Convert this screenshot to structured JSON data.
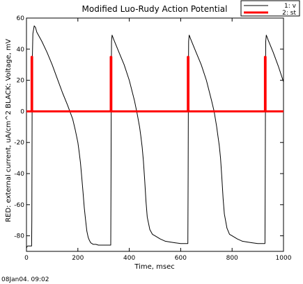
{
  "chart_data": {
    "type": "line",
    "title": "Modified Luo-Rudy Action Potential",
    "xlabel": "Time, msec",
    "ylabel": "RED: external current, uA/cm^2  BLACK: Voltage, mV",
    "xlim": [
      0,
      1000
    ],
    "ylim": [
      -90,
      60
    ],
    "xticks": [
      0,
      200,
      400,
      600,
      800,
      1000
    ],
    "yticks": [
      -80,
      -60,
      -40,
      -20,
      0,
      20,
      40,
      60
    ],
    "grid": false,
    "legend": {
      "placement": "top-right",
      "entries": [
        "1: v",
        "2: st"
      ]
    },
    "series": [
      {
        "name": "v",
        "legend_label": "1: v",
        "color": "#000000",
        "x": [
          0,
          2,
          5,
          10,
          20,
          21,
          22,
          23,
          25,
          30,
          35,
          40,
          60,
          80,
          100,
          120,
          140,
          160,
          180,
          190,
          200,
          205,
          210,
          215,
          220,
          225,
          230,
          235,
          240,
          245,
          250,
          255,
          260,
          270,
          280,
          300,
          320,
          328,
          329,
          330,
          331,
          333,
          340,
          360,
          380,
          400,
          420,
          430,
          440,
          445,
          450,
          455,
          460,
          465,
          470,
          480,
          490,
          500,
          520,
          540,
          560,
          580,
          600,
          620,
          628,
          629,
          630,
          631,
          633,
          640,
          660,
          680,
          700,
          720,
          730,
          740,
          745,
          750,
          755,
          760,
          765,
          770,
          780,
          790,
          800,
          820,
          840,
          860,
          880,
          900,
          920,
          928,
          929,
          930,
          931,
          933,
          940,
          960,
          980,
          1000
        ],
        "values": [
          -88,
          -87,
          -86.5,
          -86.5,
          -86.5,
          -70,
          0,
          35,
          50,
          55,
          54,
          51,
          45,
          38,
          30,
          21,
          12,
          4,
          -5,
          -12,
          -20,
          -26,
          -33,
          -42,
          -52,
          -62,
          -70,
          -77,
          -81,
          -83,
          -84.5,
          -85,
          -85.5,
          -85.5,
          -86,
          -86,
          -86,
          -86,
          -40,
          20,
          45,
          49,
          46,
          38,
          30,
          20,
          7,
          -1,
          -10,
          -16,
          -23,
          -32,
          -44,
          -58,
          -68,
          -76,
          -79,
          -80,
          -82,
          -83.5,
          -84,
          -84.5,
          -85,
          -85,
          -85,
          -40,
          20,
          45,
          49,
          46,
          38,
          30,
          20,
          7,
          0,
          -10,
          -16,
          -22,
          -30,
          -42,
          -56,
          -66,
          -75,
          -79,
          -80,
          -82,
          -83.5,
          -84,
          -84.5,
          -85,
          -85,
          -85,
          -40,
          20,
          45,
          49,
          46,
          38,
          29,
          19
        ]
      },
      {
        "name": "st",
        "legend_label": "2: st",
        "color": "#ff0000",
        "x": [
          0,
          20,
          20,
          22,
          22,
          328,
          328,
          330,
          330,
          628,
          628,
          630,
          630,
          928,
          928,
          930,
          930,
          1000
        ],
        "values": [
          0,
          0,
          35,
          35,
          0,
          0,
          35,
          35,
          0,
          0,
          35,
          35,
          0,
          0,
          35,
          35,
          0,
          0
        ]
      }
    ]
  },
  "footer": {
    "timestamp": "08Jan04. 09:02"
  }
}
